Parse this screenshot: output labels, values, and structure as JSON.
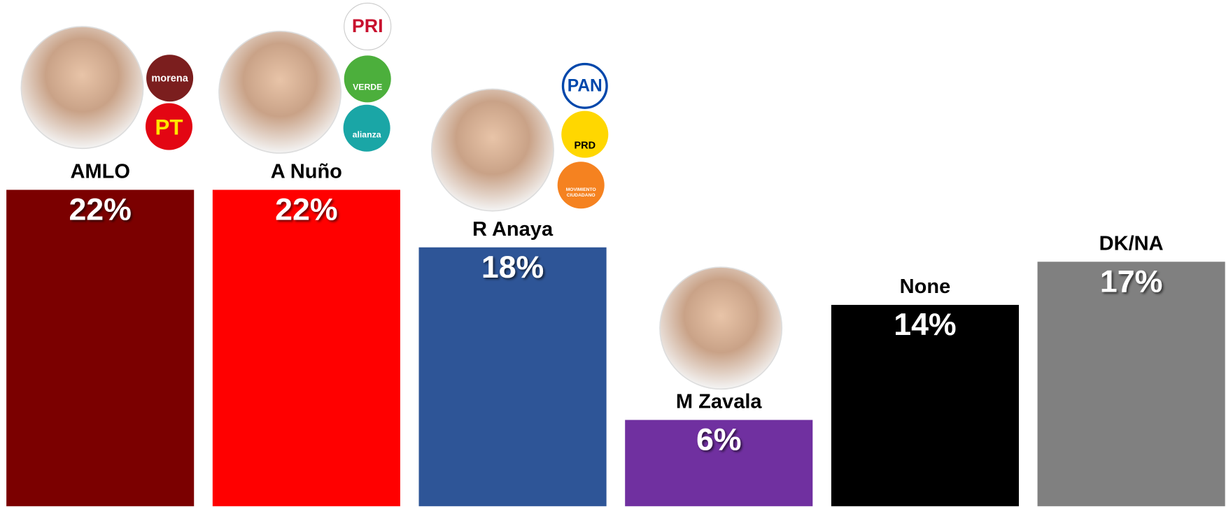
{
  "chart_data": {
    "type": "bar",
    "categories": [
      "AMLO",
      "A Nuño",
      "R Anaya",
      "M Zavala",
      "None",
      "DK/NA"
    ],
    "values": [
      22,
      22,
      18,
      6,
      14,
      17
    ],
    "value_labels": [
      "22%",
      "22%",
      "18%",
      "6%",
      "14%",
      "17%"
    ],
    "colors": [
      "#7b0000",
      "#ff0000",
      "#2e5597",
      "#7030a0",
      "#000000",
      "#808080"
    ],
    "ylim": [
      0,
      22
    ],
    "annotations": [
      "morena",
      "PT",
      "PRI",
      "VERDE",
      "alianza",
      "PAN",
      "PRD",
      "MOVIMIENTO",
      "CIUDADANO"
    ]
  }
}
